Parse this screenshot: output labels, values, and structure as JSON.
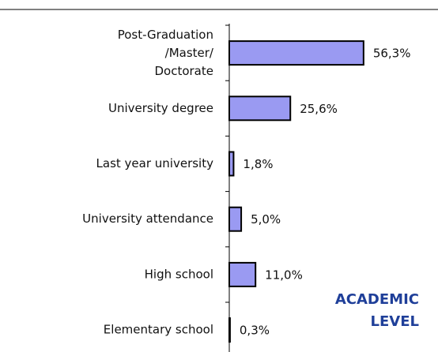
{
  "chart_data": {
    "type": "barh",
    "categories": [
      "Post-Graduation\n/Master/\nDoctorate",
      "University degree",
      "Last year university",
      "University attendance",
      "High school",
      "Elementary school"
    ],
    "values": [
      56.3,
      25.6,
      1.8,
      5.0,
      11.0,
      0.3
    ],
    "value_labels": [
      "56,3%",
      "25,6%",
      "1,8%",
      "5,0%",
      "11,0%",
      "0,3%"
    ],
    "color": "#9a9af2",
    "xlim": [
      0,
      60
    ],
    "annotation": [
      "ACADEMIC",
      "LEVEL"
    ]
  }
}
